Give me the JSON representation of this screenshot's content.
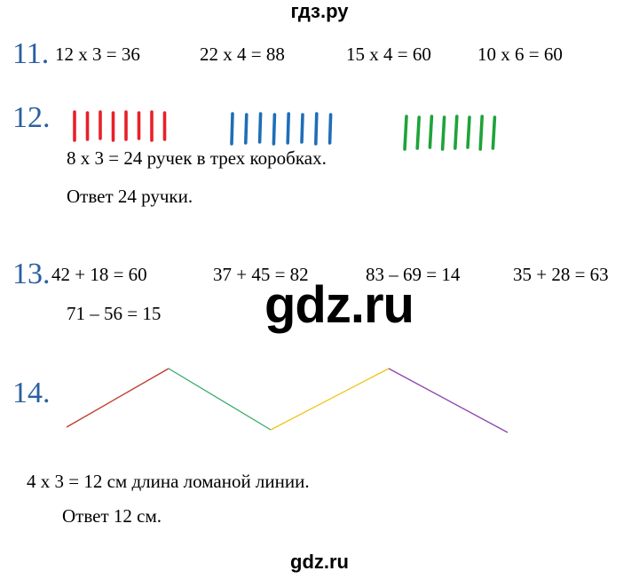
{
  "header": {
    "site": "гдз.ру"
  },
  "tasks": {
    "t11": {
      "number": "11.",
      "equations": [
        "12 x 3 = 36",
        "22 x 4  = 88",
        "15 x 4 = 60",
        "10 x 6 = 60"
      ]
    },
    "t12": {
      "number": "12.",
      "groups": [
        {
          "count": 8,
          "color": "#e8202a"
        },
        {
          "count": 8,
          "color": "#1f6eb8"
        },
        {
          "count": 8,
          "color": "#1fa33a"
        }
      ],
      "equation": "8 x 3 =  24   ручек  в трех коробках.",
      "answer": "Ответ 24   ручки."
    },
    "t13": {
      "number": "13.",
      "equations": [
        "42 + 18 = 60",
        "37 + 45 = 82",
        "83 – 69 = 14",
        "35 + 28 = 63",
        "71 – 56 = 15"
      ]
    },
    "t14": {
      "number": "14.",
      "segment_colors": [
        "#c0392b",
        "#3aaa6a",
        "#f2c318",
        "#8e44ad"
      ],
      "equation": "4 x 3 = 12 см  длина ломаной  линии.",
      "answer": "Ответ 12 см."
    }
  },
  "watermark": {
    "middle": "gdz.ru",
    "footer": "gdz.ru"
  }
}
